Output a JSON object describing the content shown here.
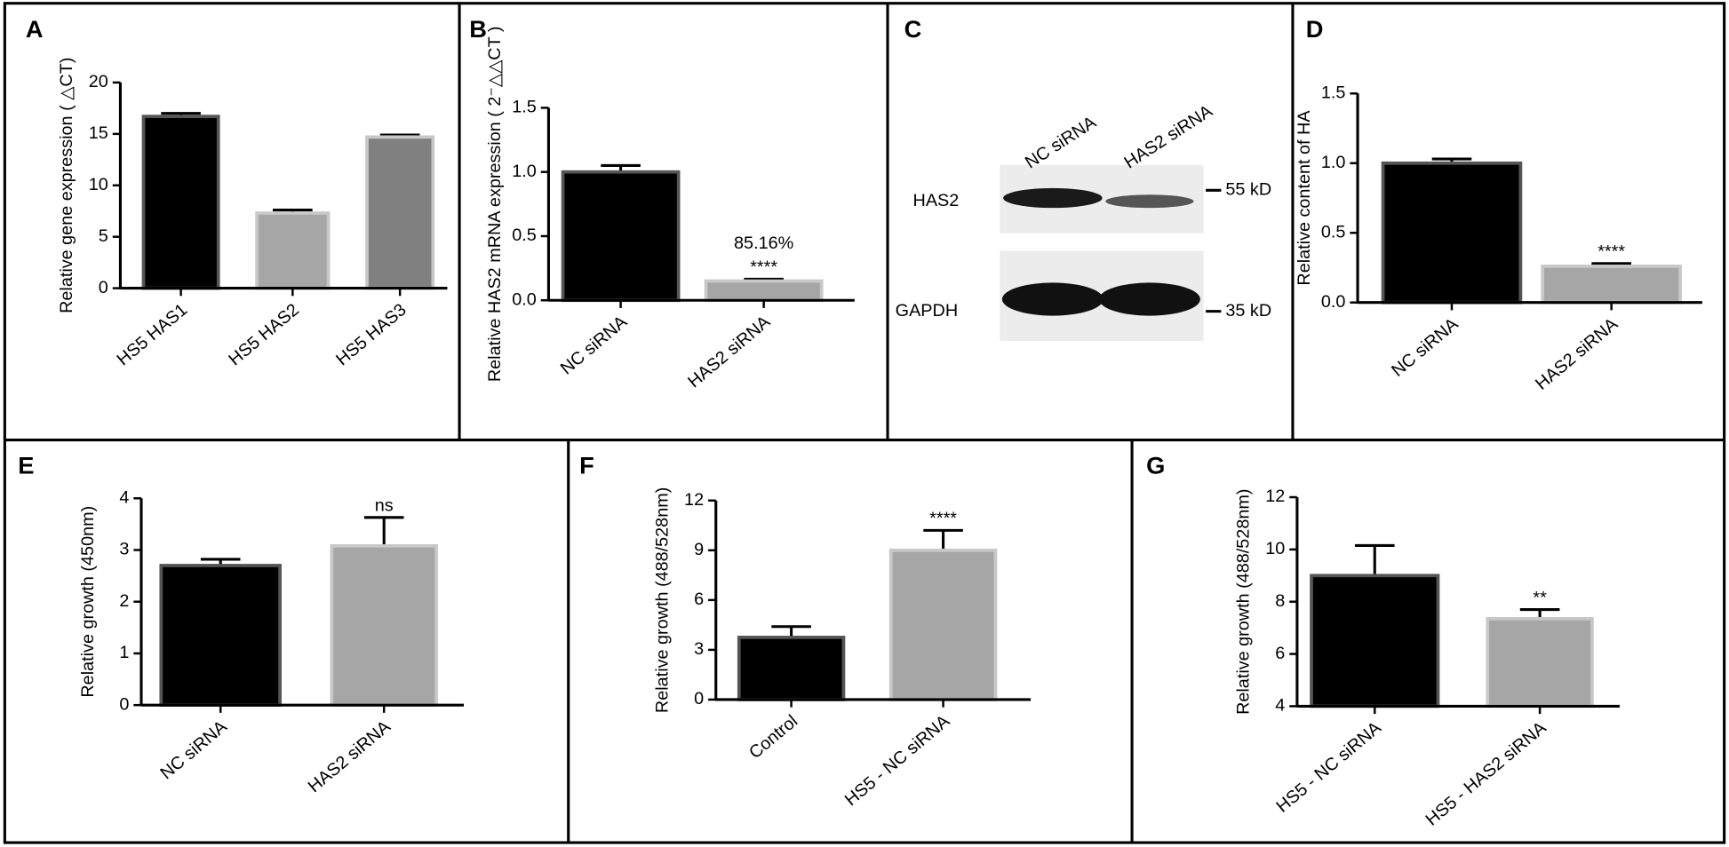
{
  "chart_data": [
    {
      "type": "bar",
      "panel": "A",
      "ylabel": "Relative gene expression ( △CT)",
      "categories": [
        "HS5 HAS1",
        "HS5 HAS2",
        "HS5 HAS3"
      ],
      "values": [
        16.7,
        7.3,
        14.7
      ],
      "errors": [
        0.3,
        0.3,
        0.2
      ],
      "colors": [
        "#000000",
        "#a6a6a6",
        "#808080"
      ],
      "ylim": [
        0,
        20
      ],
      "yticks": [
        0,
        5,
        10,
        15,
        20
      ],
      "annotations": [
        [],
        [],
        []
      ]
    },
    {
      "type": "bar",
      "panel": "B",
      "ylabel": "Relative HAS2 mRNA expression ( 2⁻△△CT )",
      "categories": [
        "NC siRNA",
        "HAS2 siRNA"
      ],
      "values": [
        1.0,
        0.15
      ],
      "errors": [
        0.05,
        0.015
      ],
      "colors": [
        "#000000",
        "#a6a6a6"
      ],
      "ylim": [
        0,
        1.5
      ],
      "yticks": [
        {
          "value": 0,
          "label": "0.0"
        },
        0.5,
        {
          "value": 1,
          "label": "1.0"
        },
        1.5
      ],
      "annotations": [
        [],
        [
          "85.16%",
          "****"
        ]
      ]
    },
    {
      "type": "blot",
      "panel": "C",
      "lanes": [
        "NC siRNA",
        "HAS2 siRNA"
      ],
      "proteins": [
        "HAS2",
        "GAPDH"
      ],
      "markers": [
        "55 kD",
        "35 kD"
      ]
    },
    {
      "type": "bar",
      "panel": "D",
      "ylabel": "Relative content of HA",
      "categories": [
        "NC siRNA",
        "HAS2 siRNA"
      ],
      "values": [
        1.0,
        0.26
      ],
      "errors": [
        0.03,
        0.02
      ],
      "colors": [
        "#000000",
        "#a6a6a6"
      ],
      "ylim": [
        0,
        1.5
      ],
      "yticks": [
        {
          "value": 0,
          "label": "0.0"
        },
        0.5,
        {
          "value": 1,
          "label": "1.0"
        },
        1.5
      ],
      "annotations": [
        [],
        [
          "****"
        ]
      ]
    },
    {
      "type": "bar",
      "panel": "E",
      "ylabel": "Relative growth  (450nm)",
      "categories": [
        "NC siRNA",
        "HAS2 siRNA"
      ],
      "values": [
        2.7,
        3.08
      ],
      "errors": [
        0.12,
        0.55
      ],
      "colors": [
        "#000000",
        "#a6a6a6"
      ],
      "ylim": [
        0,
        4
      ],
      "yticks": [
        0,
        1,
        2,
        3,
        4
      ],
      "annotations": [
        [],
        [
          "ns"
        ]
      ]
    },
    {
      "type": "bar",
      "panel": "F",
      "ylabel": "Relative growth  (488/528nm)",
      "categories": [
        "Control",
        "HS5 - NC  siRNA"
      ],
      "values": [
        3.75,
        9.0
      ],
      "errors": [
        0.65,
        1.2
      ],
      "colors": [
        "#000000",
        "#a6a6a6"
      ],
      "ylim": [
        0,
        12
      ],
      "yticks": [
        0,
        3,
        6,
        9,
        12
      ],
      "annotations": [
        [],
        [
          "****"
        ]
      ]
    },
    {
      "type": "bar",
      "panel": "G",
      "ylabel": "Relative growth  (488/528nm)",
      "categories": [
        "HS5 - NC siRNA",
        "HS5 - HAS2 siRNA"
      ],
      "values": [
        9.0,
        7.35
      ],
      "errors": [
        1.15,
        0.35
      ],
      "colors": [
        "#000000",
        "#a6a6a6"
      ],
      "ylim": [
        4,
        12
      ],
      "yticks": [
        4,
        6,
        8,
        10,
        12
      ],
      "annotations": [
        [],
        [
          "**"
        ]
      ]
    }
  ]
}
